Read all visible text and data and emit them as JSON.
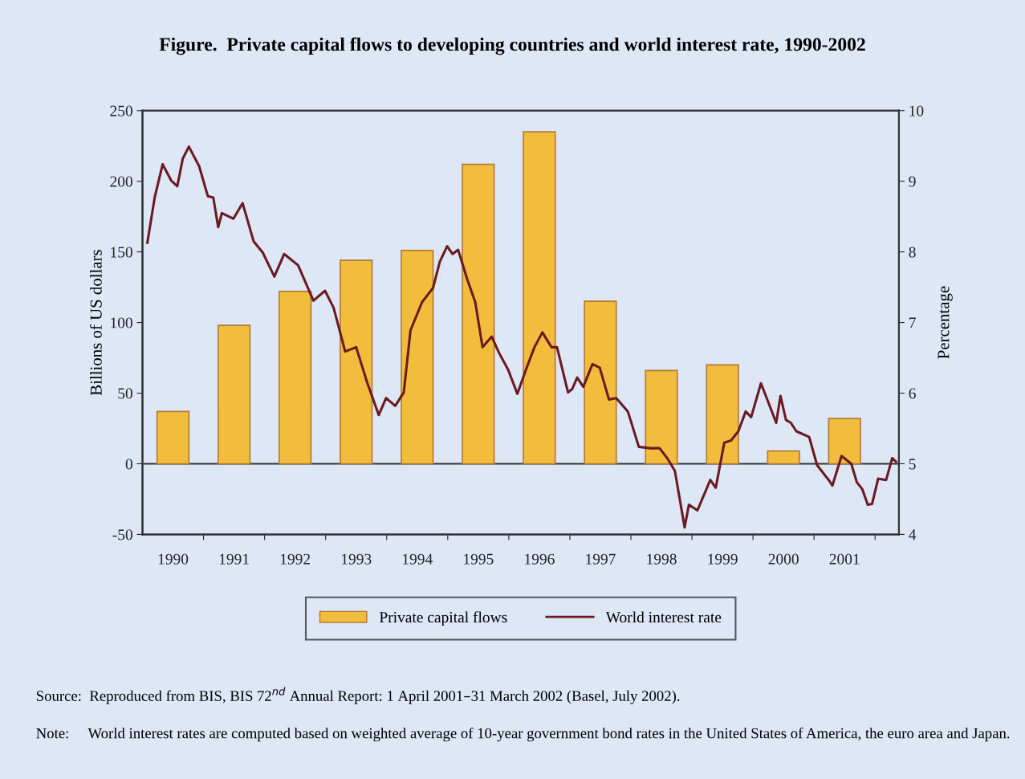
{
  "chart_data": {
    "type": "bar",
    "title": "Figure.  Private capital flows to developing countries and world interest rate, 1990-2002",
    "ylabel": "Billions of US dollars",
    "y2label": "Percentage",
    "x": [
      1990.5,
      1991.5,
      1992.5,
      1993.5,
      1994.5,
      1995.5,
      1996.5,
      1997.5,
      1998.5,
      1999.5,
      2000.5,
      2001.5
    ],
    "xlim": [
      1990,
      2002.39
    ],
    "xticks": [
      {
        "value": 1990.5,
        "label": "1990"
      },
      {
        "value": 1991,
        "label": null
      },
      {
        "value": 1991.5,
        "label": "1991"
      },
      {
        "value": 1992,
        "label": null
      },
      {
        "value": 1992.5,
        "label": "1992"
      },
      {
        "value": 1993,
        "label": null
      },
      {
        "value": 1993.5,
        "label": "1993"
      },
      {
        "value": 1994,
        "label": null
      },
      {
        "value": 1994.5,
        "label": "1994"
      },
      {
        "value": 1995,
        "label": null
      },
      {
        "value": 1995.5,
        "label": "1995"
      },
      {
        "value": 1996,
        "label": null
      },
      {
        "value": 1996.5,
        "label": "1996"
      },
      {
        "value": 1997,
        "label": null
      },
      {
        "value": 1997.5,
        "label": "1997"
      },
      {
        "value": 1998,
        "label": null
      },
      {
        "value": 1998.5,
        "label": "1998"
      },
      {
        "value": 1999,
        "label": null
      },
      {
        "value": 1999.5,
        "label": "1999"
      },
      {
        "value": 2000,
        "label": null
      },
      {
        "value": 2000.5,
        "label": "2000"
      },
      {
        "value": 2001,
        "label": null
      },
      {
        "value": 2001.5,
        "label": "2001"
      },
      {
        "value": 2002,
        "label": null
      }
    ],
    "ylim": [
      -50,
      250
    ],
    "yticks": [
      -50,
      0,
      50,
      100,
      150,
      200,
      250
    ],
    "y2lim": [
      4,
      10
    ],
    "y2ticks": [
      4,
      5,
      6,
      7,
      8,
      9,
      10
    ],
    "series": [
      {
        "name": "Private capital flows",
        "color": "#f2bd3c",
        "values": [
          37,
          98,
          122,
          144,
          151,
          212,
          235,
          115,
          66,
          70,
          9,
          32
        ]
      },
      {
        "name": "World interest rate",
        "type": "line",
        "axis": "y2",
        "color": "#6b1a22",
        "x": [
          1990.08,
          1990.2,
          1990.33,
          1990.47,
          1990.57,
          1990.66,
          1990.76,
          1990.93,
          1991.07,
          1991.16,
          1991.24,
          1991.3,
          1991.49,
          1991.64,
          1991.82,
          1991.97,
          1992.16,
          1992.32,
          1992.55,
          1992.8,
          1992.99,
          1993.13,
          1993.32,
          1993.5,
          1993.68,
          1993.87,
          1993.99,
          1994.14,
          1994.28,
          1994.39,
          1994.58,
          1994.76,
          1994.87,
          1994.99,
          1995.08,
          1995.17,
          1995.32,
          1995.45,
          1995.57,
          1995.72,
          1995.84,
          1995.99,
          1996.14,
          1996.28,
          1996.42,
          1996.55,
          1996.7,
          1996.79,
          1996.97,
          1997.04,
          1997.12,
          1997.22,
          1997.37,
          1997.49,
          1997.64,
          1997.76,
          1997.95,
          1998.13,
          1998.32,
          1998.47,
          1998.61,
          1998.72,
          1998.88,
          1998.95,
          1999.09,
          1999.3,
          1999.39,
          1999.53,
          1999.64,
          1999.76,
          1999.88,
          1999.97,
          2000.13,
          2000.26,
          2000.38,
          2000.45,
          2000.54,
          2000.62,
          2000.71,
          2000.92,
          2001.05,
          2001.24,
          2001.3,
          2001.45,
          2001.61,
          2001.7,
          2001.79,
          2001.88,
          2001.95,
          2002.05,
          2002.18,
          2002.28,
          2002.34
        ],
        "values": [
          8.13,
          8.77,
          9.24,
          9.01,
          8.93,
          9.32,
          9.49,
          9.21,
          8.79,
          8.77,
          8.35,
          8.55,
          8.47,
          8.69,
          8.15,
          7.99,
          7.65,
          7.97,
          7.81,
          7.31,
          7.45,
          7.21,
          6.59,
          6.65,
          6.15,
          5.69,
          5.93,
          5.82,
          6.01,
          6.89,
          7.29,
          7.49,
          7.86,
          8.08,
          7.97,
          8.03,
          7.61,
          7.29,
          6.65,
          6.8,
          6.57,
          6.33,
          5.99,
          6.33,
          6.65,
          6.86,
          6.65,
          6.65,
          6.01,
          6.06,
          6.22,
          6.09,
          6.41,
          6.36,
          5.91,
          5.93,
          5.74,
          5.24,
          5.22,
          5.22,
          5.06,
          4.9,
          4.1,
          4.42,
          4.34,
          4.77,
          4.66,
          5.3,
          5.33,
          5.46,
          5.74,
          5.66,
          6.14,
          5.85,
          5.58,
          5.96,
          5.62,
          5.58,
          5.46,
          5.38,
          4.98,
          4.77,
          4.69,
          5.11,
          5.0,
          4.74,
          4.64,
          4.42,
          4.43,
          4.79,
          4.77,
          5.08,
          5.03
        ]
      }
    ],
    "legend": "bottom",
    "grid": false,
    "ref_lines": [
      {
        "axis": "y",
        "value": 0,
        "color": "#333333"
      }
    ],
    "annotations": [
      "Source:  Reproduced from BIS, BIS 72$^{nd}$ Annual Report: 1 April 2001–31 March 2002 (Basel, July 2002).",
      "Note:     World interest rates are computed based on weighted average of 10-year government bond rates in the United States of America, the euro area and Japan."
    ]
  }
}
